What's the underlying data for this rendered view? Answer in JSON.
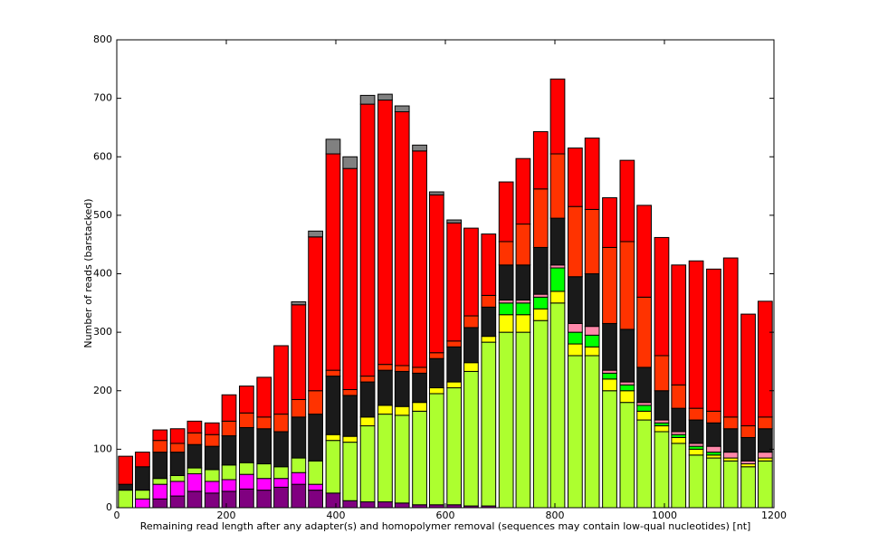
{
  "chart_data": {
    "type": "stacked_bar",
    "x_label": "Remaining read length after any adapter(s) and homopolymer removal (sequences may contain low-qual nucleotides) [nt]",
    "y_label": "Number of reads (barstacked)",
    "x": [
      16,
      47,
      79,
      111,
      142,
      174,
      205,
      237,
      269,
      300,
      332,
      363,
      395,
      426,
      458,
      490,
      521,
      553,
      584,
      616,
      647,
      679,
      711,
      742,
      774,
      805,
      837,
      868,
      900,
      932,
      963,
      995,
      1026,
      1058,
      1090,
      1121,
      1153,
      1184
    ],
    "bar_width": 26,
    "xlim": [
      0,
      1200
    ],
    "xticks": [
      0,
      200,
      400,
      600,
      800,
      1000,
      1200
    ],
    "ylim": [
      0,
      800
    ],
    "yticks": [
      0,
      100,
      200,
      300,
      400,
      500,
      600,
      700,
      800
    ],
    "series": [
      {
        "color": "#800080",
        "values": [
          0,
          0,
          15,
          20,
          28,
          25,
          28,
          32,
          30,
          35,
          40,
          30,
          25,
          12,
          10,
          10,
          8,
          5,
          5,
          5,
          3,
          3,
          0,
          0,
          0,
          0,
          0,
          0,
          0,
          0,
          0,
          0,
          0,
          0,
          0,
          0,
          0,
          0
        ]
      },
      {
        "color": "#ff00ff",
        "values": [
          0,
          15,
          25,
          25,
          30,
          20,
          20,
          25,
          20,
          15,
          20,
          10,
          0,
          0,
          0,
          0,
          0,
          0,
          0,
          0,
          0,
          0,
          0,
          0,
          0,
          0,
          0,
          0,
          0,
          0,
          0,
          0,
          0,
          0,
          0,
          0,
          0,
          0
        ]
      },
      {
        "color": "#adff2f",
        "values": [
          30,
          15,
          10,
          10,
          10,
          20,
          25,
          20,
          25,
          20,
          25,
          40,
          90,
          100,
          130,
          150,
          150,
          160,
          190,
          200,
          230,
          280,
          300,
          300,
          320,
          350,
          260,
          260,
          200,
          180,
          150,
          130,
          110,
          90,
          85,
          80,
          70,
          80
        ]
      },
      {
        "color": "#ffff00",
        "values": [
          0,
          0,
          0,
          0,
          0,
          0,
          0,
          0,
          0,
          0,
          0,
          0,
          10,
          10,
          15,
          15,
          15,
          15,
          10,
          10,
          15,
          10,
          30,
          30,
          20,
          20,
          20,
          15,
          20,
          20,
          15,
          10,
          10,
          10,
          5,
          5,
          5,
          5
        ]
      },
      {
        "color": "#00ff00",
        "values": [
          0,
          0,
          0,
          0,
          0,
          0,
          0,
          0,
          0,
          0,
          0,
          0,
          0,
          0,
          0,
          0,
          0,
          0,
          0,
          0,
          0,
          0,
          20,
          20,
          20,
          40,
          20,
          20,
          10,
          10,
          10,
          5,
          5,
          5,
          5,
          0,
          0,
          0
        ]
      },
      {
        "color": "#ff88aa",
        "values": [
          0,
          0,
          0,
          0,
          0,
          0,
          0,
          0,
          0,
          0,
          0,
          0,
          0,
          0,
          0,
          0,
          0,
          0,
          0,
          0,
          0,
          0,
          5,
          5,
          5,
          5,
          15,
          15,
          5,
          5,
          5,
          5,
          5,
          5,
          10,
          10,
          5,
          10
        ]
      },
      {
        "color": "#1a1a1a",
        "values": [
          10,
          40,
          45,
          40,
          40,
          40,
          50,
          60,
          60,
          60,
          70,
          80,
          100,
          70,
          60,
          60,
          60,
          50,
          50,
          60,
          60,
          50,
          60,
          60,
          80,
          80,
          80,
          90,
          80,
          90,
          60,
          50,
          40,
          40,
          40,
          40,
          40,
          40
        ]
      },
      {
        "color": "#ff3300",
        "values": [
          0,
          0,
          20,
          15,
          20,
          20,
          25,
          25,
          20,
          30,
          30,
          40,
          10,
          10,
          10,
          10,
          10,
          10,
          10,
          10,
          20,
          20,
          40,
          70,
          100,
          110,
          120,
          110,
          130,
          150,
          120,
          60,
          40,
          20,
          20,
          20,
          20,
          20
        ]
      },
      {
        "color": "#ff0000",
        "values": [
          48,
          25,
          18,
          25,
          20,
          20,
          45,
          46,
          68,
          117,
          162,
          263,
          370,
          378,
          465,
          452,
          434,
          370,
          270,
          202,
          150,
          105,
          102,
          112,
          98,
          128,
          100,
          122,
          85,
          139,
          157,
          202,
          205,
          252,
          243,
          272,
          191,
          198
        ]
      },
      {
        "color": "#808080",
        "values": [
          0,
          0,
          0,
          0,
          0,
          0,
          0,
          0,
          0,
          0,
          5,
          10,
          25,
          20,
          15,
          10,
          10,
          10,
          5,
          5,
          0,
          0,
          0,
          0,
          0,
          0,
          0,
          0,
          0,
          0,
          0,
          0,
          0,
          0,
          0,
          0,
          0,
          0
        ]
      }
    ]
  }
}
